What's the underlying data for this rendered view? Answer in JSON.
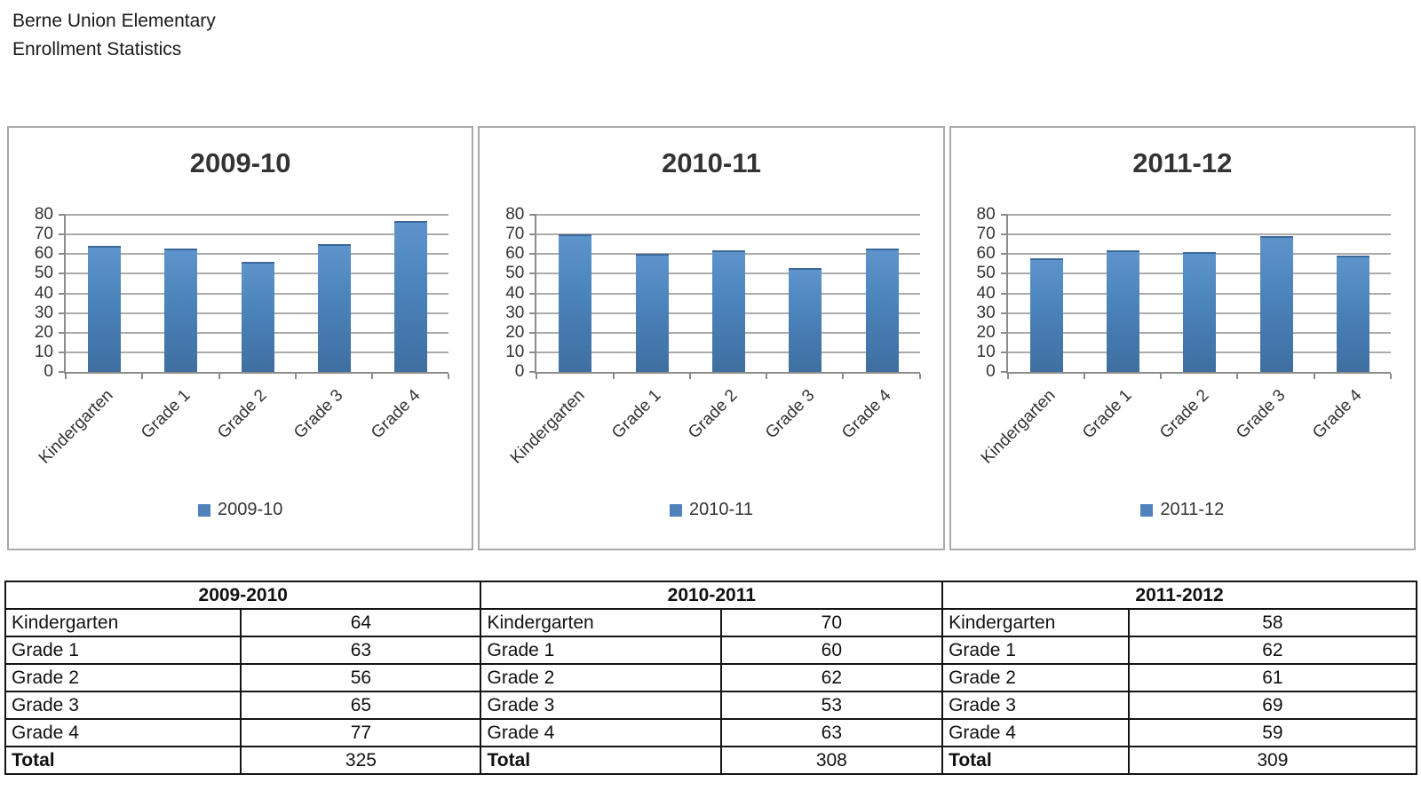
{
  "doc_title": {
    "line1": "Berne Union Elementary",
    "line2": "Enrollment Statistics"
  },
  "colors": {
    "bar_top": "#5d94cb",
    "bar_mid": "#4a82ba",
    "bar_bottom": "#3f6fa0",
    "bar_cap": "#3c689a",
    "legend_swatch": "#4f81bd",
    "gridline": "#ababab",
    "axis": "#8c8c8c",
    "chart_border": "#a9a9a9",
    "table_border": "#141414"
  },
  "chart_data": [
    {
      "type": "bar",
      "title": "2009-10",
      "categories": [
        "Kindergarten",
        "Grade 1",
        "Grade 2",
        "Grade 3",
        "Grade 4"
      ],
      "values": [
        64,
        63,
        56,
        65,
        77
      ],
      "ylim": [
        0,
        80
      ],
      "yticks": [
        0,
        10,
        20,
        30,
        40,
        50,
        60,
        70,
        80
      ],
      "grid": true,
      "legend": [
        "2009-10"
      ],
      "legend_position": "bottom"
    },
    {
      "type": "bar",
      "title": "2010-11",
      "categories": [
        "Kindergarten",
        "Grade 1",
        "Grade 2",
        "Grade 3",
        "Grade 4"
      ],
      "values": [
        70,
        60,
        62,
        53,
        63
      ],
      "ylim": [
        0,
        80
      ],
      "yticks": [
        0,
        10,
        20,
        30,
        40,
        50,
        60,
        70,
        80
      ],
      "grid": true,
      "legend": [
        "2010-11"
      ],
      "legend_position": "bottom"
    },
    {
      "type": "bar",
      "title": "2011-12",
      "categories": [
        "Kindergarten",
        "Grade 1",
        "Grade 2",
        "Grade 3",
        "Grade 4"
      ],
      "values": [
        58,
        62,
        61,
        69,
        59
      ],
      "ylim": [
        0,
        80
      ],
      "yticks": [
        0,
        10,
        20,
        30,
        40,
        50,
        60,
        70,
        80
      ],
      "grid": true,
      "legend": [
        "2011-12"
      ],
      "legend_position": "bottom"
    }
  ],
  "table": {
    "column_widths_pct": [
      16.7,
      17.0,
      17.0,
      15.7,
      13.2,
      20.4
    ],
    "sections": [
      {
        "header": "2009-2010",
        "rows": [
          {
            "label": "Kindergarten",
            "value": 64
          },
          {
            "label": "Grade 1",
            "value": 63
          },
          {
            "label": "Grade 2",
            "value": 56
          },
          {
            "label": "Grade 3",
            "value": 65
          },
          {
            "label": "Grade 4",
            "value": 77
          }
        ],
        "total_label": "Total",
        "total_value": 325
      },
      {
        "header": "2010-2011",
        "rows": [
          {
            "label": "Kindergarten",
            "value": 70
          },
          {
            "label": "Grade 1",
            "value": 60
          },
          {
            "label": "Grade 2",
            "value": 62
          },
          {
            "label": "Grade 3",
            "value": 53
          },
          {
            "label": "Grade 4",
            "value": 63
          }
        ],
        "total_label": "Total",
        "total_value": 308
      },
      {
        "header": "2011-2012",
        "rows": [
          {
            "label": "Kindergarten",
            "value": 58
          },
          {
            "label": "Grade 1",
            "value": 62
          },
          {
            "label": "Grade 2",
            "value": 61
          },
          {
            "label": "Grade 3",
            "value": 69
          },
          {
            "label": "Grade 4",
            "value": 59
          }
        ],
        "total_label": "Total",
        "total_value": 309
      }
    ]
  }
}
